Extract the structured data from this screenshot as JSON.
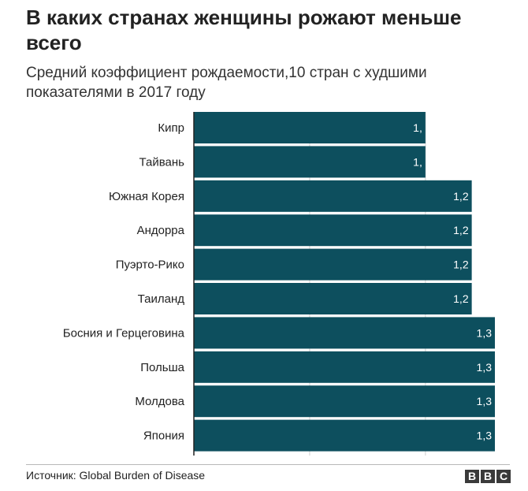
{
  "title": "В каких странах женщины рожают меньше всего",
  "subtitle": "Средний коэффициент рождаемости,10 стран с худшими показателями в 2017 году",
  "source": "Источник: Global Burden of Disease",
  "logo": [
    "B",
    "B",
    "C"
  ],
  "colors": {
    "bar": "#0d4f5e",
    "axis": "#222222",
    "grid": "#cfcfcf",
    "bar_label": "#ffffff"
  },
  "chart_data": {
    "type": "bar",
    "orientation": "horizontal",
    "title": "В каких странах женщины рожают меньше всего",
    "subtitle": "Средний коэффициент рождаемости,10 стран с худшими показателями в 2017 году",
    "categories": [
      "Кипр",
      "Тайвань",
      "Южная Корея",
      "Андорра",
      "Пуэрто-Рико",
      "Таиланд",
      "Босния и Герцеговина",
      "Польша",
      "Молдова",
      "Япония"
    ],
    "values": [
      1.0,
      1.0,
      1.2,
      1.2,
      1.2,
      1.2,
      1.3,
      1.3,
      1.3,
      1.3
    ],
    "value_labels": [
      "1,",
      "1,",
      "1,2",
      "1,2",
      "1,2",
      "1,2",
      "1,3",
      "1,3",
      "1,3",
      "1,3"
    ],
    "xlim": [
      0,
      1.3
    ],
    "grid": true,
    "xlabel": "",
    "ylabel": ""
  }
}
